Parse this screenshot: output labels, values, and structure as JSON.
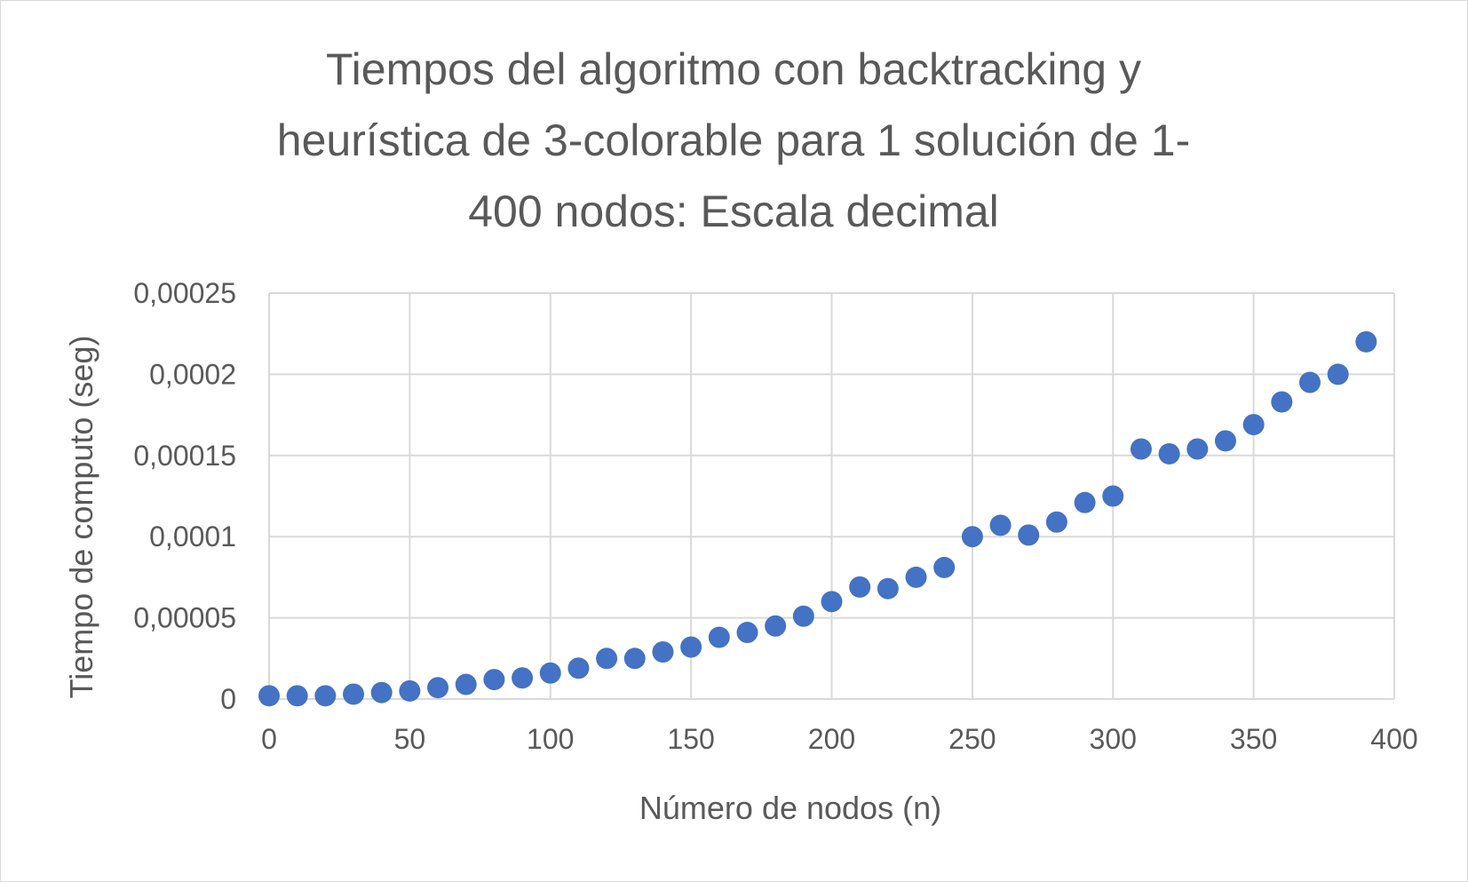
{
  "chart_data": {
    "type": "scatter",
    "title_lines": [
      "Tiempos del algoritmo con backtracking y",
      "heurística de 3-colorable para 1 solución de 1-",
      "400 nodos: Escala decimal"
    ],
    "xlabel": "Número de nodos (n)",
    "ylabel": "Tiempo de computo (seg)",
    "xlim": [
      0,
      400
    ],
    "ylim": [
      0,
      0.00025
    ],
    "x_ticks": [
      "0",
      "50",
      "100",
      "150",
      "200",
      "250",
      "300",
      "350",
      "400"
    ],
    "y_ticks": [
      "0",
      "0,00005",
      "0,0001",
      "0,00015",
      "0,0002",
      "0,00025"
    ],
    "grid": true,
    "color": "#4472c4",
    "x": [
      0,
      10,
      20,
      30,
      40,
      50,
      60,
      70,
      80,
      90,
      100,
      110,
      120,
      130,
      140,
      150,
      160,
      170,
      180,
      190,
      200,
      210,
      220,
      230,
      240,
      250,
      260,
      270,
      280,
      290,
      300,
      310,
      320,
      330,
      340,
      350,
      360,
      370,
      380,
      390
    ],
    "y": [
      2e-06,
      2e-06,
      2e-06,
      3e-06,
      4e-06,
      5e-06,
      7e-06,
      9e-06,
      1.2e-05,
      1.3e-05,
      1.6e-05,
      1.9e-05,
      2.5e-05,
      2.5e-05,
      2.9e-05,
      3.2e-05,
      3.8e-05,
      4.1e-05,
      4.5e-05,
      5.1e-05,
      6e-05,
      6.9e-05,
      6.8e-05,
      7.5e-05,
      8.1e-05,
      0.0001,
      0.000107,
      0.000101,
      0.000109,
      0.000121,
      0.000125,
      0.000154,
      0.000151,
      0.000154,
      0.000159,
      0.000169,
      0.000183,
      0.000195,
      0.0002,
      0.00022
    ]
  }
}
